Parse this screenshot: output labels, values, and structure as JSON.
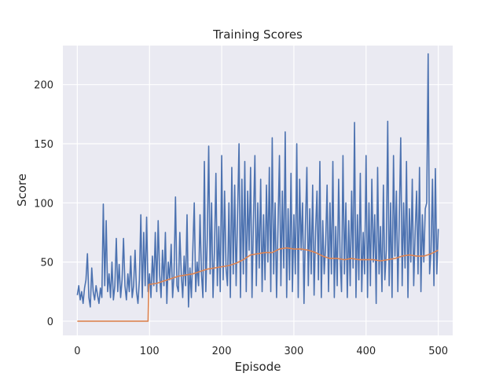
{
  "chart_data": {
    "type": "line",
    "title": "Training Scores",
    "xlabel": "Episode",
    "ylabel": "Score",
    "xlim": [
      -20,
      520
    ],
    "ylim": [
      -12,
      233
    ],
    "xticks": [
      0,
      100,
      200,
      300,
      400,
      500
    ],
    "yticks": [
      0,
      50,
      100,
      150,
      200
    ],
    "grid": true,
    "background": "#eaeaf2",
    "series": [
      {
        "color": "#4c72b0",
        "points": [
          [
            0,
            22
          ],
          [
            2,
            30
          ],
          [
            4,
            18
          ],
          [
            6,
            25
          ],
          [
            8,
            15
          ],
          [
            10,
            28
          ],
          [
            12,
            35
          ],
          [
            14,
            57
          ],
          [
            16,
            20
          ],
          [
            18,
            12
          ],
          [
            20,
            45
          ],
          [
            22,
            25
          ],
          [
            24,
            18
          ],
          [
            26,
            30
          ],
          [
            28,
            22
          ],
          [
            30,
            15
          ],
          [
            32,
            28
          ],
          [
            34,
            20
          ],
          [
            36,
            99
          ],
          [
            38,
            30
          ],
          [
            40,
            85
          ],
          [
            42,
            25
          ],
          [
            44,
            40
          ],
          [
            46,
            20
          ],
          [
            48,
            50
          ],
          [
            50,
            18
          ],
          [
            52,
            30
          ],
          [
            54,
            70
          ],
          [
            56,
            25
          ],
          [
            58,
            48
          ],
          [
            60,
            20
          ],
          [
            62,
            35
          ],
          [
            64,
            70
          ],
          [
            66,
            30
          ],
          [
            68,
            18
          ],
          [
            70,
            40
          ],
          [
            72,
            25
          ],
          [
            74,
            55
          ],
          [
            76,
            20
          ],
          [
            78,
            30
          ],
          [
            80,
            60
          ],
          [
            82,
            25
          ],
          [
            84,
            15
          ],
          [
            86,
            35
          ],
          [
            88,
            90
          ],
          [
            90,
            20
          ],
          [
            92,
            75
          ],
          [
            94,
            30
          ],
          [
            96,
            88
          ],
          [
            98,
            25
          ],
          [
            100,
            40
          ],
          [
            102,
            20
          ],
          [
            104,
            55
          ],
          [
            106,
            30
          ],
          [
            108,
            75
          ],
          [
            110,
            25
          ],
          [
            112,
            85
          ],
          [
            114,
            40
          ],
          [
            116,
            20
          ],
          [
            118,
            60
          ],
          [
            120,
            30
          ],
          [
            122,
            75
          ],
          [
            124,
            15
          ],
          [
            126,
            50
          ],
          [
            128,
            35
          ],
          [
            130,
            65
          ],
          [
            132,
            20
          ],
          [
            134,
            40
          ],
          [
            136,
            105
          ],
          [
            138,
            30
          ],
          [
            140,
            25
          ],
          [
            142,
            75
          ],
          [
            144,
            40
          ],
          [
            146,
            20
          ],
          [
            148,
            55
          ],
          [
            150,
            30
          ],
          [
            152,
            90
          ],
          [
            154,
            12
          ],
          [
            156,
            45
          ],
          [
            158,
            20
          ],
          [
            160,
            60
          ],
          [
            162,
            100
          ],
          [
            164,
            25
          ],
          [
            166,
            50
          ],
          [
            168,
            30
          ],
          [
            170,
            90
          ],
          [
            172,
            40
          ],
          [
            174,
            20
          ],
          [
            176,
            135
          ],
          [
            178,
            25
          ],
          [
            180,
            70
          ],
          [
            182,
            148
          ],
          [
            184,
            40
          ],
          [
            186,
            100
          ],
          [
            188,
            20
          ],
          [
            190,
            60
          ],
          [
            192,
            125
          ],
          [
            194,
            30
          ],
          [
            196,
            80
          ],
          [
            198,
            25
          ],
          [
            200,
            140
          ],
          [
            202,
            35
          ],
          [
            204,
            110
          ],
          [
            206,
            45
          ],
          [
            208,
            30
          ],
          [
            210,
            100
          ],
          [
            212,
            20
          ],
          [
            214,
            130
          ],
          [
            216,
            40
          ],
          [
            218,
            115
          ],
          [
            220,
            30
          ],
          [
            222,
            90
          ],
          [
            224,
            150
          ],
          [
            226,
            20
          ],
          [
            228,
            120
          ],
          [
            230,
            40
          ],
          [
            232,
            135
          ],
          [
            234,
            25
          ],
          [
            236,
            110
          ],
          [
            238,
            60
          ],
          [
            240,
            130
          ],
          [
            242,
            20
          ],
          [
            244,
            85
          ],
          [
            246,
            140
          ],
          [
            248,
            30
          ],
          [
            250,
            100
          ],
          [
            252,
            45
          ],
          [
            254,
            120
          ],
          [
            256,
            25
          ],
          [
            258,
            90
          ],
          [
            260,
            35
          ],
          [
            262,
            115
          ],
          [
            264,
            50
          ],
          [
            266,
            130
          ],
          [
            268,
            25
          ],
          [
            270,
            155
          ],
          [
            272,
            40
          ],
          [
            274,
            100
          ],
          [
            276,
            20
          ],
          [
            278,
            80
          ],
          [
            280,
            140
          ],
          [
            282,
            30
          ],
          [
            284,
            110
          ],
          [
            286,
            45
          ],
          [
            288,
            160
          ],
          [
            290,
            20
          ],
          [
            292,
            95
          ],
          [
            294,
            35
          ],
          [
            296,
            125
          ],
          [
            298,
            25
          ],
          [
            300,
            90
          ],
          [
            302,
            40
          ],
          [
            304,
            150
          ],
          [
            306,
            20
          ],
          [
            308,
            120
          ],
          [
            310,
            60
          ],
          [
            312,
            100
          ],
          [
            314,
            15
          ],
          [
            316,
            80
          ],
          [
            318,
            130
          ],
          [
            320,
            30
          ],
          [
            322,
            95
          ],
          [
            324,
            40
          ],
          [
            326,
            115
          ],
          [
            328,
            22
          ],
          [
            330,
            75
          ],
          [
            332,
            110
          ],
          [
            334,
            35
          ],
          [
            336,
            135
          ],
          [
            338,
            20
          ],
          [
            340,
            85
          ],
          [
            342,
            40
          ],
          [
            344,
            65
          ],
          [
            346,
            115
          ],
          [
            348,
            25
          ],
          [
            350,
            100
          ],
          [
            352,
            40
          ],
          [
            354,
            135
          ],
          [
            356,
            20
          ],
          [
            358,
            80
          ],
          [
            360,
            30
          ],
          [
            362,
            120
          ],
          [
            364,
            55
          ],
          [
            366,
            25
          ],
          [
            368,
            140
          ],
          [
            370,
            40
          ],
          [
            372,
            100
          ],
          [
            374,
            20
          ],
          [
            376,
            85
          ],
          [
            378,
            30
          ],
          [
            380,
            110
          ],
          [
            382,
            45
          ],
          [
            384,
            168
          ],
          [
            386,
            20
          ],
          [
            388,
            90
          ],
          [
            390,
            35
          ],
          [
            392,
            125
          ],
          [
            394,
            25
          ],
          [
            396,
            75
          ],
          [
            398,
            40
          ],
          [
            400,
            140
          ],
          [
            402,
            20
          ],
          [
            404,
            100
          ],
          [
            406,
            30
          ],
          [
            408,
            120
          ],
          [
            410,
            50
          ],
          [
            412,
            90
          ],
          [
            414,
            15
          ],
          [
            416,
            130
          ],
          [
            418,
            40
          ],
          [
            420,
            80
          ],
          [
            422,
            25
          ],
          [
            424,
            115
          ],
          [
            426,
            35
          ],
          [
            428,
            60
          ],
          [
            430,
            169
          ],
          [
            432,
            30
          ],
          [
            434,
            100
          ],
          [
            436,
            20
          ],
          [
            438,
            140
          ],
          [
            440,
            55
          ],
          [
            442,
            110
          ],
          [
            444,
            25
          ],
          [
            446,
            85
          ],
          [
            448,
            155
          ],
          [
            450,
            30
          ],
          [
            452,
            100
          ],
          [
            454,
            45
          ],
          [
            456,
            135
          ],
          [
            458,
            20
          ],
          [
            460,
            95
          ],
          [
            462,
            50
          ],
          [
            464,
            120
          ],
          [
            466,
            30
          ],
          [
            468,
            75
          ],
          [
            470,
            110
          ],
          [
            472,
            40
          ],
          [
            474,
            130
          ],
          [
            476,
            25
          ],
          [
            478,
            90
          ],
          [
            480,
            50
          ],
          [
            482,
            95
          ],
          [
            484,
            100
          ],
          [
            486,
            226
          ],
          [
            488,
            40
          ],
          [
            490,
            60
          ],
          [
            492,
            120
          ],
          [
            494,
            30
          ],
          [
            496,
            129
          ],
          [
            498,
            40
          ],
          [
            500,
            78
          ]
        ]
      },
      {
        "color": "#dd8452",
        "points": [
          [
            0,
            0
          ],
          [
            98,
            0
          ],
          [
            99,
            31
          ],
          [
            110,
            32
          ],
          [
            120,
            34
          ],
          [
            130,
            36
          ],
          [
            140,
            38
          ],
          [
            150,
            39
          ],
          [
            160,
            40
          ],
          [
            170,
            42
          ],
          [
            180,
            44
          ],
          [
            190,
            45
          ],
          [
            200,
            46
          ],
          [
            210,
            47
          ],
          [
            220,
            49
          ],
          [
            230,
            52
          ],
          [
            240,
            56
          ],
          [
            250,
            57
          ],
          [
            260,
            58
          ],
          [
            270,
            58
          ],
          [
            280,
            61
          ],
          [
            290,
            62
          ],
          [
            300,
            61
          ],
          [
            310,
            61
          ],
          [
            320,
            60
          ],
          [
            330,
            58
          ],
          [
            340,
            55
          ],
          [
            350,
            53
          ],
          [
            360,
            53
          ],
          [
            370,
            52
          ],
          [
            380,
            53
          ],
          [
            390,
            52
          ],
          [
            400,
            52
          ],
          [
            410,
            52
          ],
          [
            420,
            51
          ],
          [
            430,
            52
          ],
          [
            440,
            53
          ],
          [
            450,
            55
          ],
          [
            460,
            56
          ],
          [
            470,
            55
          ],
          [
            480,
            55
          ],
          [
            490,
            57
          ],
          [
            500,
            60
          ]
        ]
      }
    ]
  }
}
